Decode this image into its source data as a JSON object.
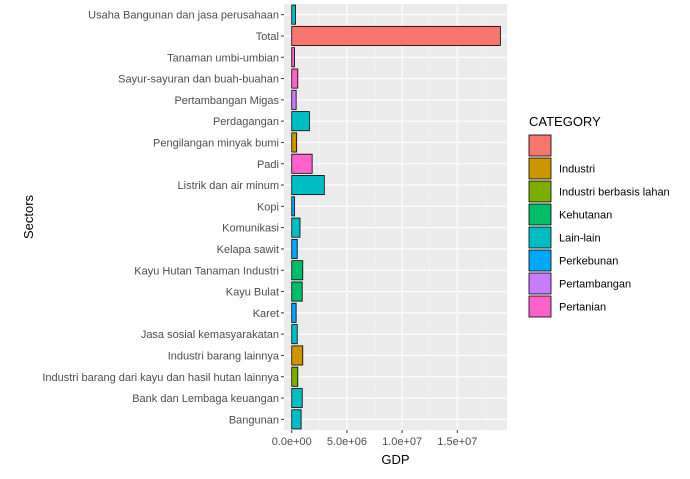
{
  "chart_data": {
    "type": "bar",
    "orientation": "horizontal",
    "title": "",
    "xlabel": "GDP",
    "ylabel": "Sectors",
    "xlim": [
      -700000,
      19500000
    ],
    "x_ticks": [
      0,
      5000000,
      10000000,
      15000000
    ],
    "x_tick_labels": [
      "0.0e+00",
      "5.0e+06",
      "1.0e+07",
      "1.5e+07"
    ],
    "grid": true,
    "legend": {
      "title": "CATEGORY",
      "position": "right",
      "entries": [
        {
          "name": "",
          "color": "#F8766D"
        },
        {
          "name": "Industri",
          "color": "#CD9600"
        },
        {
          "name": "Industri berbasis lahan",
          "color": "#7CAE00"
        },
        {
          "name": "Kehutanan",
          "color": "#00BE67"
        },
        {
          "name": "Lain-lain",
          "color": "#00BFC4"
        },
        {
          "name": "Perkebunan",
          "color": "#00A9FF"
        },
        {
          "name": "Pertambangan",
          "color": "#C77CFF"
        },
        {
          "name": "Pertanian",
          "color": "#FF61CC"
        }
      ]
    },
    "bars": [
      {
        "category": "Usaha Bangunan dan jasa perusahaan",
        "value": 350000,
        "group": "Lain-lain",
        "color": "#00BFC4"
      },
      {
        "category": "Total",
        "value": 18900000,
        "group": "",
        "color": "#F8766D"
      },
      {
        "category": "Tanaman umbi-umbian",
        "value": 250000,
        "group": "Pertanian",
        "color": "#FF61CC"
      },
      {
        "category": "Sayur-sayuran dan buah-buahan",
        "value": 550000,
        "group": "Pertanian",
        "color": "#FF61CC"
      },
      {
        "category": "Pertambangan Migas",
        "value": 400000,
        "group": "Pertambangan",
        "color": "#C77CFF"
      },
      {
        "category": "Perdagangan",
        "value": 1600000,
        "group": "Lain-lain",
        "color": "#00BFC4"
      },
      {
        "category": "Pengilangan minyak bumi",
        "value": 450000,
        "group": "Industri",
        "color": "#CD9600"
      },
      {
        "category": "Padi",
        "value": 1850000,
        "group": "Pertanian",
        "color": "#FF61CC"
      },
      {
        "category": "Listrik dan air minum",
        "value": 2950000,
        "group": "Lain-lain",
        "color": "#00BFC4"
      },
      {
        "category": "Kopi",
        "value": 250000,
        "group": "Perkebunan",
        "color": "#00A9FF"
      },
      {
        "category": "Komunikasi",
        "value": 750000,
        "group": "Lain-lain",
        "color": "#00BFC4"
      },
      {
        "category": "Kelapa sawit",
        "value": 500000,
        "group": "Perkebunan",
        "color": "#00A9FF"
      },
      {
        "category": "Kayu Hutan Tanaman Industri",
        "value": 1000000,
        "group": "Kehutanan",
        "color": "#00BE67"
      },
      {
        "category": "Kayu Bulat",
        "value": 950000,
        "group": "Kehutanan",
        "color": "#00BE67"
      },
      {
        "category": "Karet",
        "value": 400000,
        "group": "Perkebunan",
        "color": "#00A9FF"
      },
      {
        "category": "Jasa sosial kemasyarakatan",
        "value": 500000,
        "group": "Lain-lain",
        "color": "#00BFC4"
      },
      {
        "category": "Industri barang lainnya",
        "value": 1000000,
        "group": "Industri",
        "color": "#CD9600"
      },
      {
        "category": "Industri barang dari kayu dan hasil hutan lainnya",
        "value": 550000,
        "group": "Industri berbasis lahan",
        "color": "#7CAE00"
      },
      {
        "category": "Bank dan Lembaga keuangan",
        "value": 950000,
        "group": "Lain-lain",
        "color": "#00BFC4"
      },
      {
        "category": "Bangunan",
        "value": 850000,
        "group": "Lain-lain",
        "color": "#00BFC4"
      }
    ]
  }
}
